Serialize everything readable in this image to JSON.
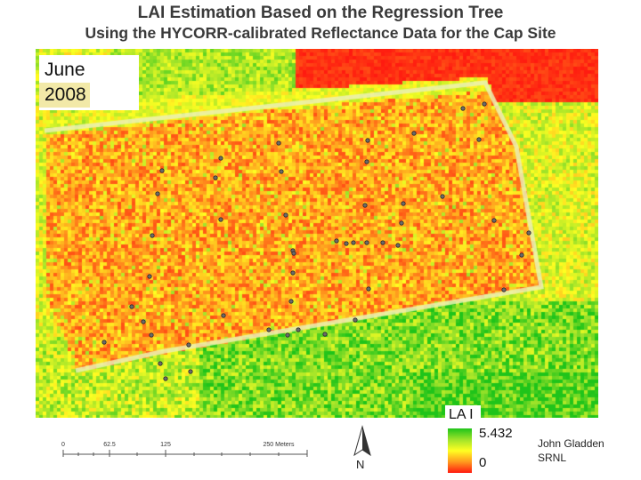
{
  "title": {
    "line1": "LAI Estimation Based on the Regression Tree",
    "line2": "Using the HYCORR-calibrated Reflectance Data for the Cap Site"
  },
  "date_label": {
    "month": "June",
    "year": "2008"
  },
  "legend": {
    "title": "LA I",
    "max": "5.432",
    "min": "0",
    "colors": [
      "#1fc41a",
      "#9ee32a",
      "#ffff22",
      "#ff9a1e",
      "#ff1a10"
    ]
  },
  "scale_bar": {
    "ticks": [
      "0",
      "62.5",
      "125",
      "250 Meters"
    ]
  },
  "north_arrow": {
    "label": "N",
    "icon": "north-arrow-icon"
  },
  "credit": {
    "name": "John Gladden",
    "org": "SRNL"
  }
}
